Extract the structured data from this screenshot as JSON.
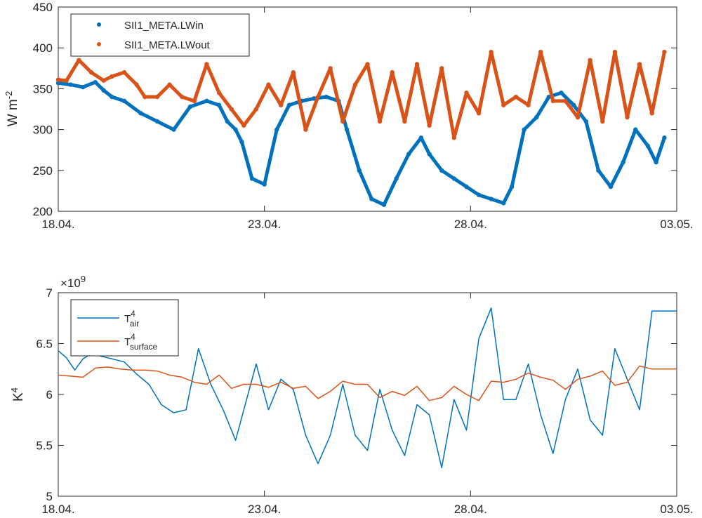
{
  "colors": {
    "blue": "#0072BD",
    "orange": "#D95319",
    "axis": "#262626"
  },
  "chart_data": [
    {
      "type": "scatter",
      "ylabel_main": "W m",
      "ylabel_exp": "-2",
      "xlim": [
        0,
        15
      ],
      "ylim": [
        200,
        450
      ],
      "yticks": [
        200,
        250,
        300,
        350,
        400,
        450
      ],
      "ytick_labels": [
        "200",
        "250",
        "300",
        "350",
        "400",
        "450"
      ],
      "xticks": [
        0,
        5,
        10,
        15
      ],
      "xtick_labels": [
        "18.04.",
        "23.04.",
        "28.04.",
        "03.05."
      ],
      "legend_position": "top-left",
      "series": [
        {
          "name": "SII1_META.LWin",
          "color": "#0072BD",
          "x": [
            0.0,
            0.3,
            0.6,
            0.9,
            1.1,
            1.3,
            1.6,
            2.0,
            2.4,
            2.8,
            3.2,
            3.6,
            3.9,
            4.1,
            4.3,
            4.45,
            4.7,
            5.0,
            5.3,
            5.6,
            5.9,
            6.2,
            6.5,
            6.8,
            7.0,
            7.3,
            7.6,
            7.9,
            8.2,
            8.5,
            8.8,
            9.0,
            9.3,
            9.6,
            9.9,
            10.2,
            10.5,
            10.8,
            11.0,
            11.3,
            11.6,
            11.9,
            12.2,
            12.5,
            12.8,
            13.1,
            13.4,
            13.7,
            14.0,
            14.3,
            14.5,
            14.7
          ],
          "y": [
            357,
            355,
            352,
            358,
            348,
            340,
            335,
            320,
            310,
            300,
            328,
            335,
            330,
            310,
            300,
            285,
            240,
            233,
            300,
            330,
            335,
            338,
            340,
            335,
            300,
            250,
            215,
            208,
            240,
            270,
            290,
            270,
            250,
            240,
            230,
            220,
            215,
            210,
            230,
            300,
            315,
            340,
            345,
            330,
            310,
            250,
            230,
            260,
            300,
            280,
            260,
            290
          ]
        },
        {
          "name": "SII1_META.LWout",
          "color": "#D95319",
          "x": [
            0.0,
            0.2,
            0.5,
            0.8,
            1.1,
            1.3,
            1.6,
            1.9,
            2.1,
            2.4,
            2.7,
            3.0,
            3.3,
            3.6,
            3.9,
            4.2,
            4.5,
            4.8,
            5.1,
            5.4,
            5.7,
            6.0,
            6.3,
            6.6,
            6.9,
            7.2,
            7.5,
            7.8,
            8.1,
            8.4,
            8.7,
            9.0,
            9.3,
            9.6,
            9.9,
            10.2,
            10.5,
            10.8,
            11.1,
            11.4,
            11.7,
            12.0,
            12.3,
            12.6,
            12.9,
            13.2,
            13.5,
            13.8,
            14.1,
            14.4,
            14.7
          ],
          "y": [
            361,
            360,
            385,
            370,
            360,
            365,
            370,
            355,
            340,
            340,
            355,
            340,
            335,
            380,
            345,
            325,
            305,
            325,
            355,
            330,
            370,
            300,
            340,
            375,
            310,
            355,
            380,
            310,
            370,
            310,
            380,
            305,
            375,
            290,
            345,
            320,
            395,
            330,
            340,
            330,
            395,
            335,
            335,
            315,
            385,
            310,
            395,
            315,
            380,
            320,
            395
          ]
        }
      ]
    },
    {
      "type": "line",
      "ylabel_main": "K",
      "ylabel_exp": "4",
      "exponent_label": "×10",
      "exponent_sup": "9",
      "xlim": [
        0,
        15
      ],
      "ylim": [
        5,
        7
      ],
      "yticks": [
        5,
        5.5,
        6,
        6.5,
        7
      ],
      "ytick_labels": [
        "5",
        "5.5",
        "6",
        "6.5",
        "7"
      ],
      "xticks": [
        0,
        5,
        10,
        15
      ],
      "xtick_labels": [
        "18.04.",
        "23.04.",
        "28.04.",
        "03.05."
      ],
      "legend_position": "top-left",
      "series": [
        {
          "name": "T",
          "name_sup": "4",
          "name_sub": "air",
          "color": "#0072BD",
          "x": [
            0.0,
            0.2,
            0.4,
            0.6,
            0.8,
            1.0,
            1.3,
            1.6,
            1.9,
            2.2,
            2.5,
            2.8,
            3.1,
            3.4,
            3.7,
            4.0,
            4.3,
            4.6,
            4.8,
            5.1,
            5.4,
            5.7,
            6.0,
            6.3,
            6.6,
            6.9,
            7.2,
            7.5,
            7.8,
            8.1,
            8.4,
            8.7,
            9.0,
            9.3,
            9.6,
            9.9,
            10.2,
            10.5,
            10.8,
            11.1,
            11.4,
            11.7,
            12.0,
            12.3,
            12.6,
            12.9,
            13.2,
            13.5,
            13.8,
            14.1,
            14.4,
            14.6,
            15.0
          ],
          "y": [
            6.43,
            6.36,
            6.24,
            6.35,
            6.4,
            6.38,
            6.35,
            6.32,
            6.2,
            6.1,
            5.9,
            5.82,
            5.85,
            6.45,
            6.1,
            5.85,
            5.55,
            6.0,
            6.3,
            5.85,
            6.15,
            6.05,
            5.6,
            5.32,
            5.6,
            6.1,
            5.6,
            5.45,
            6.05,
            5.65,
            5.4,
            5.9,
            5.8,
            5.28,
            5.95,
            5.65,
            6.55,
            6.85,
            5.95,
            5.95,
            6.3,
            5.8,
            5.42,
            5.95,
            6.25,
            5.75,
            5.6,
            6.45,
            6.15,
            5.85,
            6.82,
            6.82,
            6.82
          ]
        },
        {
          "name": "T",
          "name_sup": "4",
          "name_sub": "surface",
          "color": "#D95319",
          "x": [
            0.0,
            0.3,
            0.6,
            0.9,
            1.2,
            1.5,
            1.8,
            2.1,
            2.4,
            2.7,
            3.0,
            3.3,
            3.6,
            3.9,
            4.2,
            4.5,
            4.8,
            5.1,
            5.4,
            5.7,
            6.0,
            6.3,
            6.6,
            6.9,
            7.2,
            7.5,
            7.8,
            8.1,
            8.4,
            8.7,
            9.0,
            9.3,
            9.6,
            9.9,
            10.2,
            10.5,
            10.8,
            11.1,
            11.4,
            11.7,
            12.0,
            12.3,
            12.6,
            12.9,
            13.2,
            13.5,
            13.8,
            14.1,
            14.4,
            14.7,
            15.0
          ],
          "y": [
            6.19,
            6.18,
            6.17,
            6.26,
            6.27,
            6.25,
            6.24,
            6.24,
            6.23,
            6.19,
            6.17,
            6.12,
            6.1,
            6.19,
            6.06,
            6.1,
            6.1,
            6.07,
            6.12,
            6.06,
            6.08,
            5.96,
            6.03,
            6.13,
            6.1,
            6.1,
            5.97,
            6.03,
            5.99,
            6.08,
            5.94,
            5.97,
            6.08,
            6.0,
            5.94,
            6.13,
            6.12,
            6.15,
            6.21,
            6.17,
            6.14,
            6.05,
            6.15,
            6.18,
            6.23,
            6.09,
            6.12,
            6.28,
            6.25,
            6.25,
            6.25
          ]
        }
      ]
    }
  ]
}
